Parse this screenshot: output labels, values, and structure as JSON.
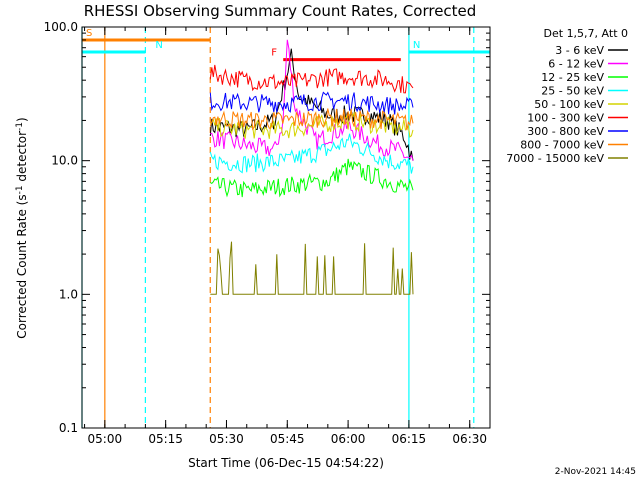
{
  "chart_data": {
    "type": "line",
    "title": "RHESSI Observing Summary Count Rates, Corrected",
    "xlabel": "Start Time (06-Dec-15 04:54:22)",
    "ylabel": "Corrected Count Rate (s",
    "ylabel_sup": "-1",
    "ylabel_mid": " detector",
    "ylabel_end": ")",
    "y_scale": "log",
    "ylim": [
      0.1,
      100
    ],
    "xlim": [
      "04:54:22",
      "06:35:00"
    ],
    "x_ticks": [
      "05:00",
      "05:15",
      "05:30",
      "05:45",
      "06:00",
      "06:15",
      "06:30"
    ],
    "y_ticks": [
      "0.1",
      "1.0",
      "10.0",
      "100.0"
    ],
    "legend_title": "Det 1,5,7, Att 0",
    "legend_position": "outside-right",
    "series": [
      {
        "name": "3 - 6 keV",
        "color": "#000000",
        "x": [
          "05:26",
          "05:35",
          "05:42",
          "05:44",
          "05:46",
          "05:48",
          "05:55",
          "06:05",
          "06:10",
          "06:14",
          "06:16"
        ],
        "y": [
          18,
          17,
          20,
          35,
          60,
          30,
          22,
          22,
          20,
          15,
          10
        ]
      },
      {
        "name": "6 - 12 keV",
        "color": "#ff00ff",
        "x": [
          "05:26",
          "05:35",
          "05:42",
          "05:44",
          "05:45",
          "05:47",
          "05:52",
          "06:00",
          "06:08",
          "06:12",
          "06:16"
        ],
        "y": [
          15,
          13,
          12,
          20,
          80,
          25,
          14,
          18,
          13,
          12,
          10
        ]
      },
      {
        "name": "12 - 25 keV",
        "color": "#00ff00",
        "x": [
          "05:26",
          "05:35",
          "05:45",
          "05:55",
          "06:00",
          "06:10",
          "06:16"
        ],
        "y": [
          6.5,
          6,
          6.5,
          7,
          9,
          7,
          6
        ]
      },
      {
        "name": "25 - 50 keV",
        "color": "#00ffff",
        "x": [
          "05:26",
          "05:35",
          "05:45",
          "05:55",
          "06:00",
          "06:10",
          "06:16"
        ],
        "y": [
          10,
          9.5,
          10,
          12,
          14,
          10,
          9
        ]
      },
      {
        "name": "50 - 100 keV",
        "color": "#d4d400",
        "x": [
          "05:26",
          "05:35",
          "05:45",
          "05:55",
          "06:00",
          "06:10",
          "06:16"
        ],
        "y": [
          18,
          17,
          17,
          19,
          20,
          18,
          17
        ]
      },
      {
        "name": "100 - 300 keV",
        "color": "#ff0000",
        "x": [
          "05:26",
          "05:35",
          "05:45",
          "05:55",
          "06:00",
          "06:10",
          "06:16"
        ],
        "y": [
          45,
          40,
          38,
          42,
          43,
          40,
          35
        ]
      },
      {
        "name": "300 - 800 keV",
        "color": "#0000ff",
        "x": [
          "05:26",
          "05:35",
          "05:45",
          "05:55",
          "06:00",
          "06:10",
          "06:16"
        ],
        "y": [
          28,
          27,
          27,
          28,
          28,
          26,
          25
        ]
      },
      {
        "name": "800 - 7000 keV",
        "color": "#ff8000",
        "x": [
          "05:26",
          "05:35",
          "05:45",
          "05:55",
          "06:00",
          "06:10",
          "06:16"
        ],
        "y": [
          21,
          20,
          20,
          21,
          21,
          20,
          19
        ]
      },
      {
        "name": "7000 - 15000 keV",
        "color": "#808000",
        "x": [
          "05:26",
          "05:35",
          "05:45",
          "05:55",
          "06:00",
          "06:10",
          "06:16"
        ],
        "y": [
          1,
          1,
          1,
          1,
          1,
          1,
          1
        ]
      }
    ],
    "flags": [
      {
        "label": "S",
        "color": "#ff8000",
        "x_start": "04:54:22",
        "x_end": "05:26",
        "level": 80
      },
      {
        "label": "N",
        "color": "#00ffff",
        "x_start": "04:54:22",
        "x_end": "05:10",
        "level": 65
      },
      {
        "label": "N",
        "color": "#00ffff",
        "x_start": "06:15",
        "x_end": "06:35",
        "level": 65
      },
      {
        "label": "F",
        "color": "#ff0000",
        "x_start": "05:44",
        "x_end": "06:13",
        "level": 57
      }
    ],
    "vertical_lines": [
      {
        "x": "04:54:22",
        "color": "#00ffff",
        "style": "solid"
      },
      {
        "x": "05:00",
        "color": "#ff8000",
        "style": "solid"
      },
      {
        "x": "05:10",
        "color": "#00ffff",
        "style": "dashed"
      },
      {
        "x": "05:26",
        "color": "#ff8000",
        "style": "dashed"
      },
      {
        "x": "06:15",
        "color": "#00ffff",
        "style": "solid"
      },
      {
        "x": "06:31",
        "color": "#00ffff",
        "style": "dashed"
      }
    ],
    "timestamp": "2-Nov-2021 14:45"
  }
}
